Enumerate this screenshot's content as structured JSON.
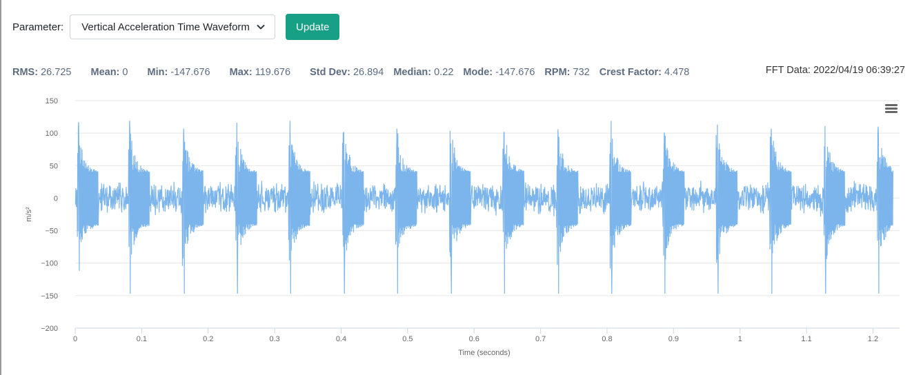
{
  "controls": {
    "parameter_label": "Parameter:",
    "parameter_value": "Vertical Acceleration Time Waveform",
    "update_label": "Update",
    "update_color": "#17a085"
  },
  "stats": [
    {
      "label": "RMS:",
      "value": "26.725"
    },
    {
      "label": "Mean:",
      "value": "0"
    },
    {
      "label": "Min:",
      "value": "-147.676"
    },
    {
      "label": "Max:",
      "value": "119.676"
    },
    {
      "label": "Std Dev:",
      "value": "26.894"
    },
    {
      "label": "Median:",
      "value": "0.22"
    },
    {
      "label": "Mode:",
      "value": "-147.676"
    },
    {
      "label": "RPM:",
      "value": "732"
    },
    {
      "label": "Crest Factor:",
      "value": "4.478"
    }
  ],
  "fft_label": "FFT Data: 2022/04/19 06:39:27",
  "chart_menu_icon": "hamburger-menu-icon",
  "chart_data": {
    "type": "line",
    "title": "",
    "xlabel": "Time (seconds)",
    "ylabel": "m/s²",
    "xlim": [
      0,
      1.23
    ],
    "ylim": [
      -200,
      150
    ],
    "x_ticks": [
      "0",
      "0.1",
      "0.2",
      "0.3",
      "0.4",
      "0.5",
      "0.6",
      "0.7",
      "0.8",
      "0.9",
      "1",
      "1.1",
      "1.2"
    ],
    "y_ticks": [
      "150",
      "100",
      "50",
      "0",
      "−50",
      "−100",
      "−150",
      "−200"
    ],
    "grid": true,
    "line_color": "#7cb5ec",
    "series": [
      {
        "name": "",
        "description_of_shape": "impulsive vibration waveform, noise ~±25 with periodic impacts",
        "impact_times": [
          0.005,
          0.082,
          0.163,
          0.243,
          0.323,
          0.404,
          0.484,
          0.565,
          0.645,
          0.726,
          0.806,
          0.886,
          0.966,
          1.047,
          1.128,
          1.208
        ],
        "impact_peaks": [
          117,
          119,
          107,
          116,
          119,
          102,
          107,
          84,
          101,
          106,
          119,
          101,
          113,
          107,
          111,
          110
        ],
        "impact_troughs": [
          -112,
          -147,
          -147,
          -147,
          -147,
          -147,
          -147,
          -147,
          -147,
          -147,
          -147,
          -147,
          -147,
          -147,
          -147,
          -147
        ]
      }
    ]
  }
}
